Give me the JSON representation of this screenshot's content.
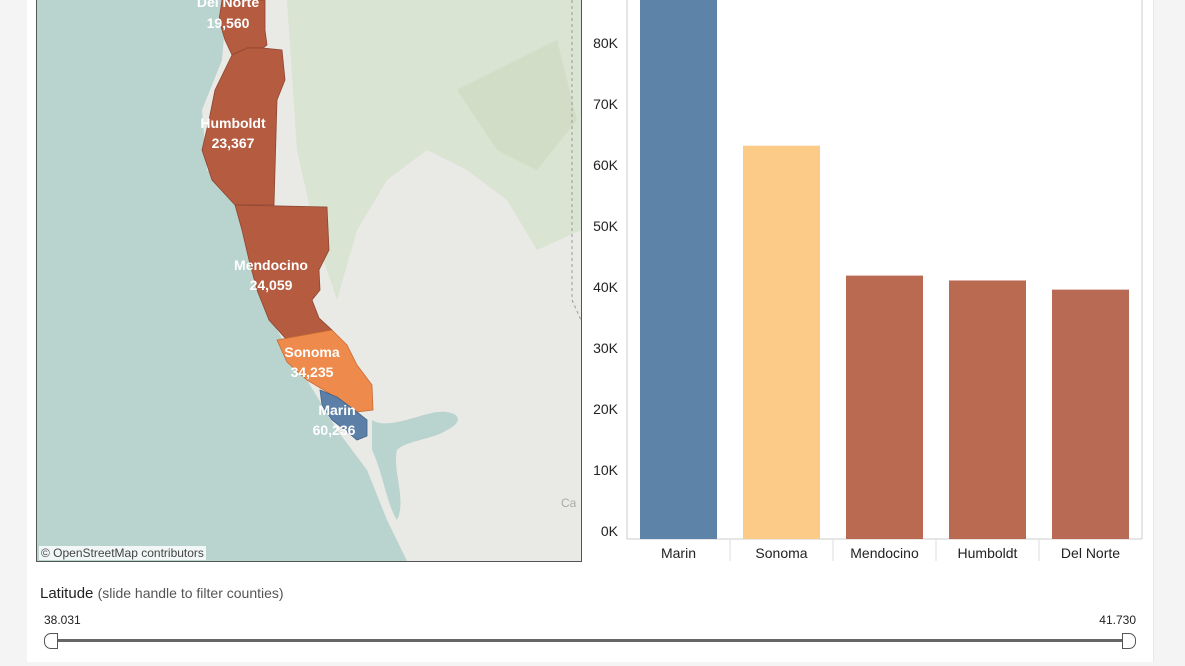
{
  "map": {
    "attribution": "© OpenStreetMap contributors",
    "partial_label": "Ca",
    "counties": [
      {
        "name": "Del Norte",
        "value": "19,560",
        "color": "#b45b40"
      },
      {
        "name": "Humboldt",
        "value": "23,367",
        "color": "#b45b40"
      },
      {
        "name": "Mendocino",
        "value": "24,059",
        "color": "#b45b40"
      },
      {
        "name": "Sonoma",
        "value": "34,235",
        "color": "#ee8a4c"
      },
      {
        "name": "Marin",
        "value": "60,236",
        "color": "#5b7fa6"
      }
    ]
  },
  "chart_data": {
    "type": "bar",
    "categories": [
      "Marin",
      "Sonoma",
      "Mendocino",
      "Humboldt",
      "Del Norte"
    ],
    "values": [
      90000,
      64500,
      43200,
      42400,
      40900
    ],
    "colors": [
      "#5e83a8",
      "#fdcb88",
      "#bb6a52",
      "#bb6a52",
      "#b86a54"
    ],
    "ylim": [
      0,
      90000
    ],
    "yticks": [
      0,
      10000,
      20000,
      30000,
      40000,
      50000,
      60000,
      70000,
      80000
    ],
    "ytick_labels": [
      "0K",
      "10K",
      "20K",
      "30K",
      "40K",
      "50K",
      "60K",
      "70K",
      "80K"
    ]
  },
  "filter": {
    "title": "Latitude",
    "subtitle": "(slide handle to filter counties)",
    "min_label": "38.031",
    "max_label": "41.730"
  }
}
